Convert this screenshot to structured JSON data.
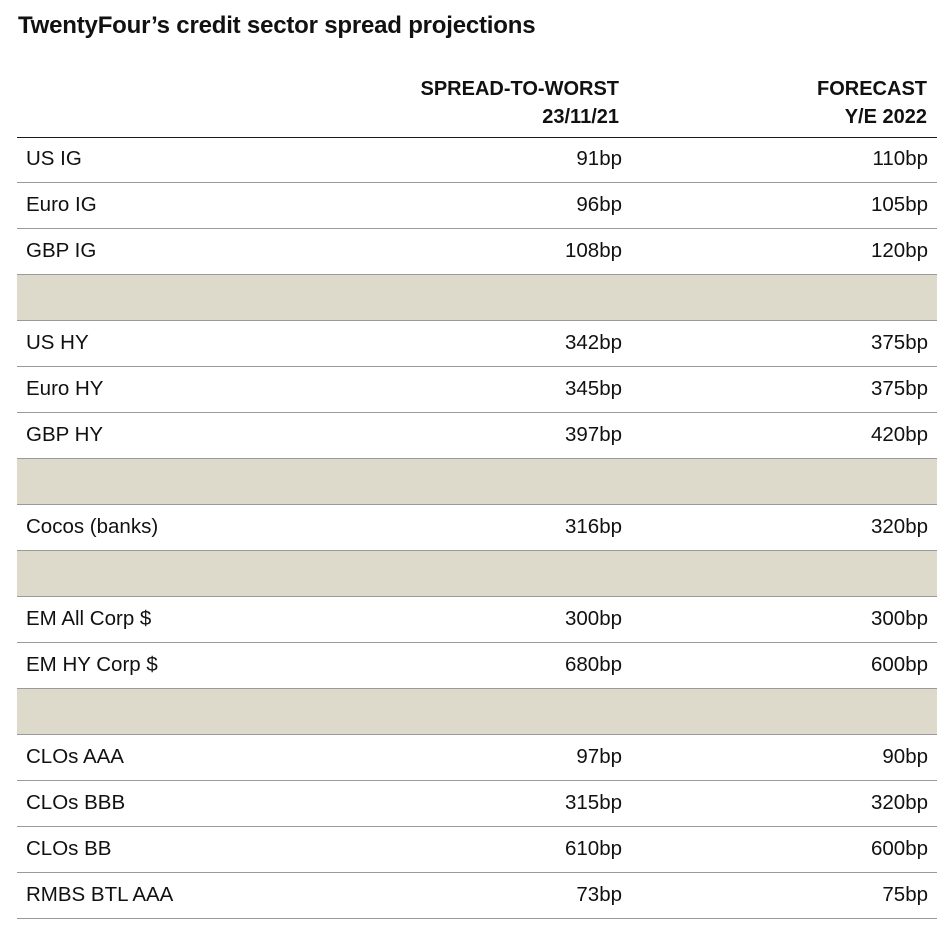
{
  "title": "TwentyFour’s credit sector spread projections",
  "colors": {
    "spacer": "#dedacb",
    "rule": "#1a1a1a",
    "row_border": "#9a9a9a"
  },
  "chart_data": {
    "type": "table",
    "title": "TwentyFour’s credit sector spread projections",
    "columns": [
      {
        "line1": "SPREAD-TO-WORST",
        "line2": "23/11/21"
      },
      {
        "line1": "FORECAST",
        "line2": "Y/E 2022"
      }
    ],
    "rows": [
      {
        "label": "US IG",
        "spread": "91bp",
        "forecast": "110bp"
      },
      {
        "label": "Euro IG",
        "spread": "96bp",
        "forecast": "105bp"
      },
      {
        "label": "GBP IG",
        "spread": "108bp",
        "forecast": "120bp"
      },
      {
        "spacer": true
      },
      {
        "label": "US HY",
        "spread": "342bp",
        "forecast": "375bp"
      },
      {
        "label": "Euro HY",
        "spread": "345bp",
        "forecast": "375bp"
      },
      {
        "label": "GBP HY",
        "spread": "397bp",
        "forecast": "420bp"
      },
      {
        "spacer": true
      },
      {
        "label": "Cocos (banks)",
        "spread": "316bp",
        "forecast": "320bp"
      },
      {
        "spacer": true
      },
      {
        "label": "EM All Corp $",
        "spread": "300bp",
        "forecast": "300bp"
      },
      {
        "label": "EM HY Corp $",
        "spread": "680bp",
        "forecast": "600bp"
      },
      {
        "spacer": true
      },
      {
        "label": "CLOs AAA",
        "spread": "97bp",
        "forecast": "90bp"
      },
      {
        "label": "CLOs BBB",
        "spread": "315bp",
        "forecast": "320bp"
      },
      {
        "label": "CLOs BB",
        "spread": "610bp",
        "forecast": "600bp"
      },
      {
        "label": "RMBS BTL AAA",
        "spread": "73bp",
        "forecast": "75bp"
      }
    ]
  }
}
